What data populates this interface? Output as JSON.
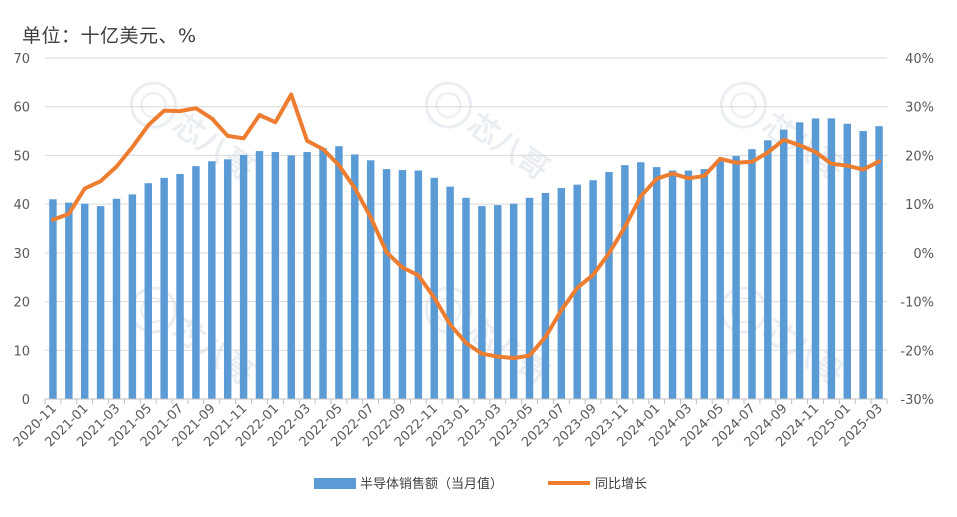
{
  "chart_data": {
    "type": "bar+line",
    "unit_label": "单位：十亿美元、%",
    "categories": [
      "2020-11",
      "2020-12",
      "2021-01",
      "2021-02",
      "2021-03",
      "2021-04",
      "2021-05",
      "2021-06",
      "2021-07",
      "2021-08",
      "2021-09",
      "2021-10",
      "2021-11",
      "2021-12",
      "2022-01",
      "2022-02",
      "2022-03",
      "2022-04",
      "2022-05",
      "2022-06",
      "2022-07",
      "2022-08",
      "2022-09",
      "2022-10",
      "2022-11",
      "2022-12",
      "2023-01",
      "2023-02",
      "2023-03",
      "2023-04",
      "2023-05",
      "2023-06",
      "2023-07",
      "2023-08",
      "2023-09",
      "2023-10",
      "2023-11",
      "2023-12",
      "2024-01",
      "2024-02",
      "2024-03",
      "2024-04",
      "2024-05",
      "2024-06",
      "2024-07",
      "2024-08",
      "2024-09",
      "2024-10",
      "2024-11",
      "2024-12",
      "2025-01",
      "2025-02",
      "2025-03"
    ],
    "x_tick_labels": [
      "2020-11",
      "2021-01",
      "2021-03",
      "2021-05",
      "2021-07",
      "2021-09",
      "2021-11",
      "2022-01",
      "2022-03",
      "2022-05",
      "2022-07",
      "2022-09",
      "2022-11",
      "2023-01",
      "2023-03",
      "2023-05",
      "2023-07",
      "2023-09",
      "2023-11",
      "2024-01",
      "2024-03",
      "2024-05",
      "2024-07",
      "2024-09",
      "2024-11",
      "2025-01",
      "2025-03"
    ],
    "series": [
      {
        "name": "半导体销售额（当月值）",
        "type": "bar",
        "axis": "left",
        "color": "#5b9bd5",
        "values": [
          41.0,
          40.3,
          40.1,
          39.6,
          41.1,
          42.0,
          44.3,
          45.4,
          46.2,
          47.8,
          48.8,
          49.2,
          50.1,
          50.9,
          50.7,
          50.0,
          50.7,
          51.5,
          51.9,
          50.2,
          49.0,
          47.2,
          47.0,
          46.9,
          45.4,
          43.6,
          41.3,
          39.6,
          39.8,
          40.1,
          41.3,
          42.3,
          43.3,
          44.0,
          44.9,
          46.6,
          48.0,
          48.6,
          47.6,
          46.9,
          46.9,
          47.2,
          49.1,
          49.9,
          51.3,
          53.1,
          55.3,
          56.8,
          57.6,
          57.6,
          56.5,
          55.0,
          56.0
        ]
      },
      {
        "name": "同比增长",
        "type": "line",
        "axis": "right",
        "color": "#ed7d31",
        "values": [
          6.8,
          8.0,
          13.2,
          14.7,
          17.7,
          21.7,
          26.2,
          29.2,
          29.1,
          29.7,
          27.6,
          24.0,
          23.5,
          28.3,
          26.8,
          32.5,
          23.0,
          21.3,
          18.0,
          13.3,
          7.3,
          0.1,
          -3.0,
          -4.6,
          -9.2,
          -14.7,
          -18.5,
          -20.7,
          -21.3,
          -21.6,
          -21.1,
          -17.3,
          -11.8,
          -7.2,
          -4.5,
          -0.1,
          5.3,
          11.6,
          15.2,
          16.3,
          15.3,
          15.8,
          19.3,
          18.5,
          18.7,
          20.6,
          23.2,
          22.1,
          20.7,
          18.3,
          17.9,
          17.1,
          18.8
        ]
      }
    ],
    "y_left": {
      "ylim": [
        0,
        70
      ],
      "ticks": [
        0,
        10,
        20,
        30,
        40,
        50,
        60,
        70
      ],
      "tick_labels": [
        "0",
        "10",
        "20",
        "30",
        "40",
        "50",
        "60",
        "70"
      ]
    },
    "y_right": {
      "ylim": [
        -30,
        40
      ],
      "ticks": [
        -30,
        -20,
        -10,
        0,
        10,
        20,
        30,
        40
      ],
      "tick_labels": [
        "-30%",
        "-20%",
        "-10%",
        "0%",
        "10%",
        "20%",
        "30%",
        "40%"
      ]
    },
    "grid": true,
    "legend_position": "bottom",
    "watermark_text": "芯八哥",
    "colors": {
      "grid": "#d9d9d9",
      "axis": "#bfbfbf",
      "tick_text": "#595959"
    }
  }
}
